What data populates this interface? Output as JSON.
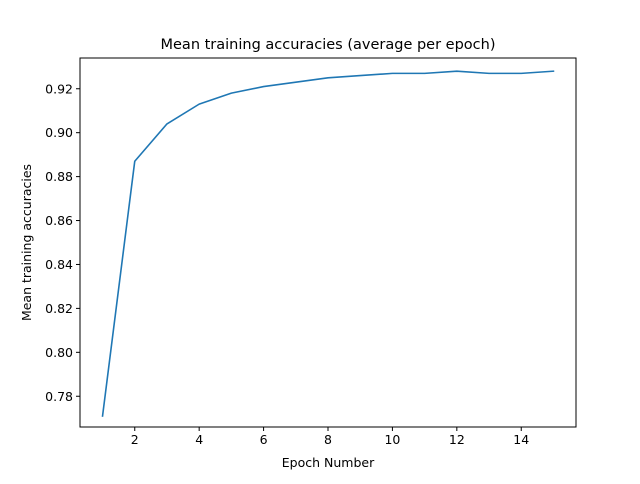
{
  "chart_data": {
    "type": "line",
    "title": "Mean training accuracies (average per epoch)",
    "xlabel": "Epoch Number",
    "ylabel": "Mean training accuracies",
    "xlim": [
      0.3,
      15.7
    ],
    "ylim": [
      0.766,
      0.934
    ],
    "xticks": [
      2,
      4,
      6,
      8,
      10,
      12,
      14
    ],
    "yticks": [
      0.78,
      0.8,
      0.82,
      0.84,
      0.86,
      0.88,
      0.9,
      0.92
    ],
    "xtick_labels": [
      "2",
      "4",
      "6",
      "8",
      "10",
      "12",
      "14"
    ],
    "ytick_labels": [
      "0.78",
      "0.80",
      "0.82",
      "0.84",
      "0.86",
      "0.88",
      "0.90",
      "0.92"
    ],
    "grid": false,
    "series": [
      {
        "color": "#1f77b4",
        "x": [
          1,
          2,
          3,
          4,
          5,
          6,
          7,
          8,
          9,
          10,
          11,
          12,
          13,
          14,
          15
        ],
        "y": [
          0.771,
          0.887,
          0.904,
          0.913,
          0.918,
          0.921,
          0.923,
          0.925,
          0.926,
          0.927,
          0.927,
          0.928,
          0.927,
          0.927,
          0.928
        ]
      }
    ]
  }
}
